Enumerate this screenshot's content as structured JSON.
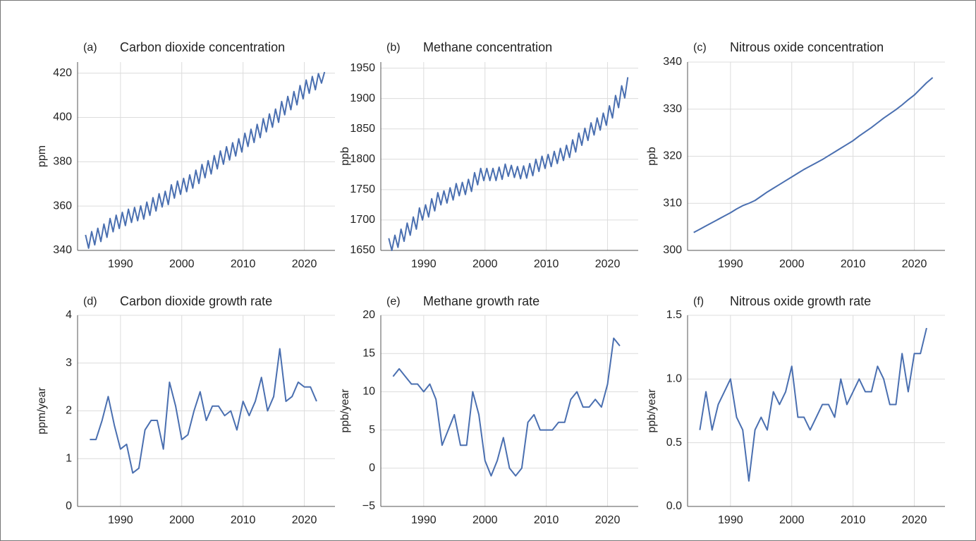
{
  "chart_data": [
    {
      "type": "line",
      "panel": "(a)",
      "title": "Carbon dioxide concentration",
      "ylabel": "ppm",
      "color": "#4a6fb0",
      "grid": true,
      "xlim": [
        1983,
        2025
      ],
      "ylim": [
        340,
        425
      ],
      "xticks": [
        1990,
        2000,
        2010,
        2020
      ],
      "yticks": [
        340,
        360,
        380,
        400,
        420
      ],
      "x": [
        1984.3,
        1984.8,
        1985.3,
        1985.8,
        1986.3,
        1986.8,
        1987.3,
        1987.8,
        1988.3,
        1988.8,
        1989.3,
        1989.8,
        1990.3,
        1990.8,
        1991.3,
        1991.8,
        1992.3,
        1992.8,
        1993.3,
        1993.8,
        1994.3,
        1994.8,
        1995.3,
        1995.8,
        1996.3,
        1996.8,
        1997.3,
        1997.8,
        1998.3,
        1998.8,
        1999.3,
        1999.8,
        2000.3,
        2000.8,
        2001.3,
        2001.8,
        2002.3,
        2002.8,
        2003.3,
        2003.8,
        2004.3,
        2004.8,
        2005.3,
        2005.8,
        2006.3,
        2006.8,
        2007.3,
        2007.8,
        2008.3,
        2008.8,
        2009.3,
        2009.8,
        2010.3,
        2010.8,
        2011.3,
        2011.8,
        2012.3,
        2012.8,
        2013.3,
        2013.8,
        2014.3,
        2014.8,
        2015.3,
        2015.8,
        2016.3,
        2016.8,
        2017.3,
        2017.8,
        2018.3,
        2018.8,
        2019.3,
        2019.8,
        2020.3,
        2020.8,
        2021.3,
        2021.8,
        2022.3,
        2022.8,
        2023.3
      ],
      "values": [
        347.0,
        341.0,
        348.5,
        342.5,
        350.0,
        344.0,
        351.9,
        345.9,
        354.4,
        348.4,
        355.9,
        349.9,
        357.2,
        351.2,
        358.6,
        352.6,
        359.4,
        353.4,
        360.1,
        354.1,
        361.8,
        355.8,
        363.8,
        357.8,
        365.6,
        359.6,
        366.7,
        360.7,
        369.6,
        363.6,
        371.3,
        365.3,
        372.5,
        366.5,
        374.1,
        368.1,
        376.2,
        370.2,
        378.8,
        372.8,
        380.5,
        374.5,
        382.8,
        376.8,
        384.9,
        378.9,
        386.8,
        380.8,
        388.6,
        382.6,
        390.4,
        384.4,
        392.9,
        386.9,
        394.7,
        388.7,
        396.9,
        390.9,
        399.5,
        393.5,
        401.6,
        395.6,
        403.8,
        397.8,
        407.2,
        401.2,
        409.5,
        403.5,
        411.7,
        405.7,
        414.4,
        408.4,
        416.9,
        410.9,
        418.5,
        412.5,
        419.8,
        415.5,
        420.5
      ]
    },
    {
      "type": "line",
      "panel": "(b)",
      "title": "Methane concentration",
      "ylabel": "ppb",
      "color": "#4a6fb0",
      "grid": true,
      "xlim": [
        1983,
        2025
      ],
      "ylim": [
        1650,
        1960
      ],
      "xticks": [
        1990,
        2000,
        2010,
        2020
      ],
      "yticks": [
        1650,
        1700,
        1750,
        1800,
        1850,
        1900,
        1950
      ],
      "x": [
        1984.3,
        1984.8,
        1985.3,
        1985.8,
        1986.3,
        1986.8,
        1987.3,
        1987.8,
        1988.3,
        1988.8,
        1989.3,
        1989.8,
        1990.3,
        1990.8,
        1991.3,
        1991.8,
        1992.3,
        1992.8,
        1993.3,
        1993.8,
        1994.3,
        1994.8,
        1995.3,
        1995.8,
        1996.3,
        1996.8,
        1997.3,
        1997.8,
        1998.3,
        1998.8,
        1999.3,
        1999.8,
        2000.3,
        2000.8,
        2001.3,
        2001.8,
        2002.3,
        2002.8,
        2003.3,
        2003.8,
        2004.3,
        2004.8,
        2005.3,
        2005.8,
        2006.3,
        2006.8,
        2007.3,
        2007.8,
        2008.3,
        2008.8,
        2009.3,
        2009.8,
        2010.3,
        2010.8,
        2011.3,
        2011.8,
        2012.3,
        2012.8,
        2013.3,
        2013.8,
        2014.3,
        2014.8,
        2015.3,
        2015.8,
        2016.3,
        2016.8,
        2017.3,
        2017.8,
        2018.3,
        2018.8,
        2019.3,
        2019.8,
        2020.3,
        2020.8,
        2021.3,
        2021.8,
        2022.3,
        2022.8,
        2023.3
      ],
      "values": [
        1670,
        1650,
        1675,
        1655,
        1685,
        1665,
        1695,
        1675,
        1705,
        1685,
        1720,
        1700,
        1725,
        1705,
        1735,
        1715,
        1745,
        1725,
        1748,
        1728,
        1753,
        1733,
        1760,
        1740,
        1762,
        1742,
        1767,
        1747,
        1778,
        1758,
        1785,
        1765,
        1785,
        1765,
        1785,
        1765,
        1787,
        1767,
        1792,
        1772,
        1790,
        1770,
        1788,
        1768,
        1789,
        1769,
        1793,
        1773,
        1800,
        1780,
        1805,
        1785,
        1808,
        1788,
        1813,
        1793,
        1818,
        1798,
        1823,
        1803,
        1832,
        1812,
        1843,
        1823,
        1851,
        1831,
        1860,
        1840,
        1868,
        1848,
        1876,
        1856,
        1888,
        1868,
        1905,
        1885,
        1921,
        1901,
        1935
      ]
    },
    {
      "type": "line",
      "panel": "(c)",
      "title": "Nitrous oxide concentration",
      "ylabel": "ppb",
      "color": "#4a6fb0",
      "grid": true,
      "xlim": [
        1983,
        2025
      ],
      "ylim": [
        300,
        340
      ],
      "xticks": [
        1990,
        2000,
        2010,
        2020
      ],
      "yticks": [
        300,
        310,
        320,
        330,
        340
      ],
      "x": [
        1984,
        1985,
        1986,
        1987,
        1988,
        1989,
        1990,
        1991,
        1992,
        1993,
        1994,
        1995,
        1996,
        1997,
        1998,
        1999,
        2000,
        2001,
        2002,
        2003,
        2004,
        2005,
        2006,
        2007,
        2008,
        2009,
        2010,
        2011,
        2012,
        2013,
        2014,
        2015,
        2016,
        2017,
        2018,
        2019,
        2020,
        2021,
        2022,
        2023
      ],
      "values": [
        303.8,
        304.5,
        305.2,
        305.9,
        306.6,
        307.3,
        308.0,
        308.8,
        309.5,
        310.0,
        310.6,
        311.5,
        312.4,
        313.2,
        314.0,
        314.8,
        315.6,
        316.4,
        317.2,
        317.9,
        318.6,
        319.3,
        320.1,
        320.9,
        321.7,
        322.5,
        323.3,
        324.3,
        325.2,
        326.1,
        327.1,
        328.1,
        329.0,
        329.9,
        330.9,
        332.0,
        333.0,
        334.3,
        335.6,
        336.7
      ]
    },
    {
      "type": "line",
      "panel": "(d)",
      "title": "Carbon dioxide growth rate",
      "ylabel": "ppm/year",
      "color": "#4a6fb0",
      "grid": true,
      "xlim": [
        1983,
        2025
      ],
      "ylim": [
        0,
        4
      ],
      "xticks": [
        1990,
        2000,
        2010,
        2020
      ],
      "yticks": [
        0,
        1,
        2,
        3,
        4
      ],
      "x": [
        1985,
        1986,
        1987,
        1988,
        1989,
        1990,
        1991,
        1992,
        1993,
        1994,
        1995,
        1996,
        1997,
        1998,
        1999,
        2000,
        2001,
        2002,
        2003,
        2004,
        2005,
        2006,
        2007,
        2008,
        2009,
        2010,
        2011,
        2012,
        2013,
        2014,
        2015,
        2016,
        2017,
        2018,
        2019,
        2020,
        2021,
        2022
      ],
      "values": [
        1.4,
        1.4,
        1.8,
        2.3,
        1.7,
        1.2,
        1.3,
        0.7,
        0.8,
        1.6,
        1.8,
        1.8,
        1.2,
        2.6,
        2.1,
        1.4,
        1.5,
        2.0,
        2.4,
        1.8,
        2.1,
        2.1,
        1.9,
        2.0,
        1.6,
        2.2,
        1.9,
        2.2,
        2.7,
        2.0,
        2.3,
        3.3,
        2.2,
        2.3,
        2.6,
        2.5,
        2.5,
        2.2
      ]
    },
    {
      "type": "line",
      "panel": "(e)",
      "title": "Methane growth rate",
      "ylabel": "ppb/year",
      "color": "#4a6fb0",
      "grid": true,
      "xlim": [
        1983,
        2025
      ],
      "ylim": [
        -5,
        20
      ],
      "xticks": [
        1990,
        2000,
        2010,
        2020
      ],
      "yticks": [
        {
          "value": -5,
          "label": "−5"
        },
        0,
        5,
        10,
        15,
        20
      ],
      "x": [
        1985,
        1986,
        1987,
        1988,
        1989,
        1990,
        1991,
        1992,
        1993,
        1994,
        1995,
        1996,
        1997,
        1998,
        1999,
        2000,
        2001,
        2002,
        2003,
        2004,
        2005,
        2006,
        2007,
        2008,
        2009,
        2010,
        2011,
        2012,
        2013,
        2014,
        2015,
        2016,
        2017,
        2018,
        2019,
        2020,
        2021,
        2022
      ],
      "values": [
        12,
        13,
        12,
        11,
        11,
        10,
        11,
        9,
        3,
        5,
        7,
        3,
        3,
        10,
        7,
        1,
        -1,
        1,
        4,
        0,
        -1,
        0,
        6,
        7,
        5,
        5,
        5,
        6,
        6,
        9,
        10,
        8,
        8,
        9,
        8,
        11,
        17,
        16
      ]
    },
    {
      "type": "line",
      "panel": "(f)",
      "title": "Nitrous oxide growth rate",
      "ylabel": "ppb/year",
      "color": "#4a6fb0",
      "grid": true,
      "xlim": [
        1983,
        2025
      ],
      "ylim": [
        0,
        1.5
      ],
      "xticks": [
        1990,
        2000,
        2010,
        2020
      ],
      "yticks": [
        {
          "value": 0,
          "label": "0.0"
        },
        0.5,
        {
          "value": 1,
          "label": "1.0"
        },
        1.5
      ],
      "x": [
        1985,
        1986,
        1987,
        1988,
        1989,
        1990,
        1991,
        1992,
        1993,
        1994,
        1995,
        1996,
        1997,
        1998,
        1999,
        2000,
        2001,
        2002,
        2003,
        2004,
        2005,
        2006,
        2007,
        2008,
        2009,
        2010,
        2011,
        2012,
        2013,
        2014,
        2015,
        2016,
        2017,
        2018,
        2019,
        2020,
        2021,
        2022
      ],
      "values": [
        0.6,
        0.9,
        0.6,
        0.8,
        0.9,
        1.0,
        0.7,
        0.6,
        0.2,
        0.6,
        0.7,
        0.6,
        0.9,
        0.8,
        0.9,
        1.1,
        0.7,
        0.7,
        0.6,
        0.7,
        0.8,
        0.8,
        0.7,
        1.0,
        0.8,
        0.9,
        1.0,
        0.9,
        0.9,
        1.1,
        1.0,
        0.8,
        0.8,
        1.2,
        0.9,
        1.2,
        1.2,
        1.4
      ]
    }
  ]
}
